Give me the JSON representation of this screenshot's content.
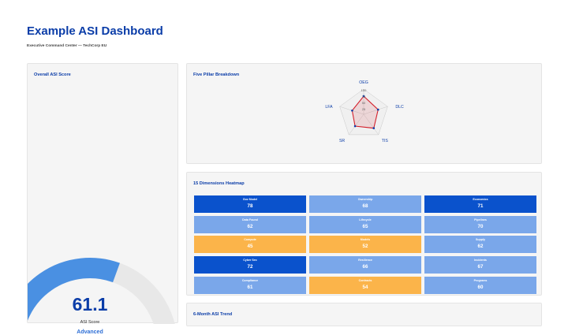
{
  "header": {
    "title": "Example ASI Dashboard",
    "subtitle": "Executive Command Center — TechCorp EU"
  },
  "gauge": {
    "title": "Overall ASI Score",
    "value": 61.1,
    "value_text": "61.1",
    "max": 100,
    "label": "ASI Score",
    "level": "Advanced",
    "fill_color": "#4a90e2",
    "track_color": "#e8e8e8"
  },
  "pillars": {
    "title": "Five Pillar Breakdown",
    "axes": [
      "OEG",
      "DLC",
      "TIS",
      "SR",
      "LFA"
    ],
    "values": [
      72,
      60,
      68,
      58,
      48
    ],
    "rmax": 100,
    "tick_labels": [
      "100",
      "75",
      "50",
      "25"
    ],
    "series_color": "#d4202c",
    "point_color": "#0b3da8"
  },
  "heatmap": {
    "title": "15 Dimensions Heatmap",
    "cells": [
      {
        "name": "Gov Model",
        "value": "78",
        "color": "#0a52cc"
      },
      {
        "name": "Ownership",
        "value": "68",
        "color": "#7aa7ea"
      },
      {
        "name": "Economics",
        "value": "71",
        "color": "#0a52cc"
      },
      {
        "name": "Data Found",
        "value": "62",
        "color": "#7aa7ea"
      },
      {
        "name": "Lifecycle",
        "value": "65",
        "color": "#7aa7ea"
      },
      {
        "name": "Pipelines",
        "value": "70",
        "color": "#7aa7ea"
      },
      {
        "name": "Compute",
        "value": "45",
        "color": "#fbb44a"
      },
      {
        "name": "Models",
        "value": "52",
        "color": "#fbb44a"
      },
      {
        "name": "Supply",
        "value": "62",
        "color": "#7aa7ea"
      },
      {
        "name": "Cyber Sec",
        "value": "72",
        "color": "#0a52cc"
      },
      {
        "name": "Resilience",
        "value": "66",
        "color": "#7aa7ea"
      },
      {
        "name": "Incidents",
        "value": "67",
        "color": "#7aa7ea"
      },
      {
        "name": "Compliance",
        "value": "61",
        "color": "#7aa7ea"
      },
      {
        "name": "Contracts",
        "value": "54",
        "color": "#fbb44a"
      },
      {
        "name": "Programs",
        "value": "60",
        "color": "#7aa7ea"
      }
    ]
  },
  "trend": {
    "title": "6-Month ASI Trend"
  }
}
